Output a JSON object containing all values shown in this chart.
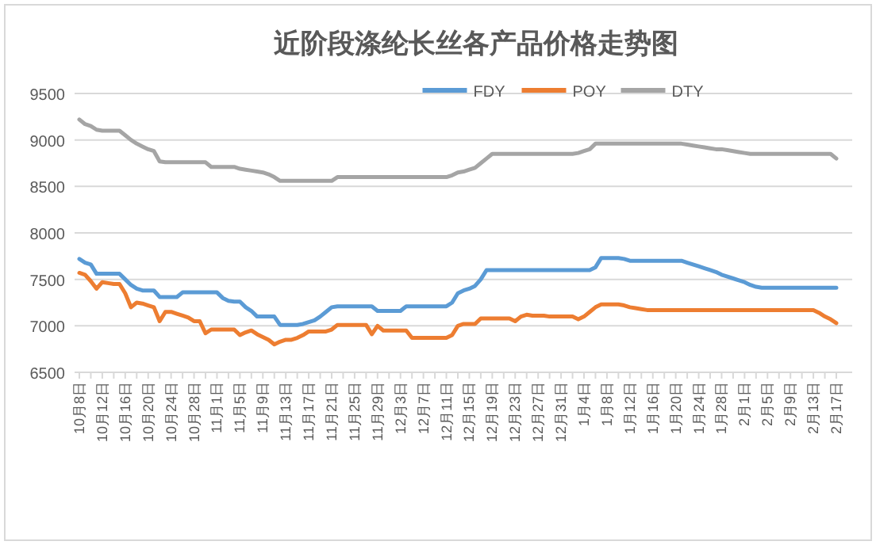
{
  "chart_data": {
    "type": "line",
    "title": "近阶段涤纶长丝各产品价格走势图",
    "categories": [
      "10月8日",
      null,
      null,
      null,
      "10月12日",
      null,
      null,
      null,
      "10月16日",
      null,
      null,
      null,
      "10月20日",
      null,
      null,
      null,
      "10月24日",
      null,
      null,
      null,
      "10月28日",
      null,
      null,
      null,
      "11月1日",
      null,
      null,
      null,
      "11月5日",
      null,
      null,
      null,
      "11月9日",
      null,
      null,
      null,
      "11月13日",
      null,
      null,
      null,
      "11月17日",
      null,
      null,
      null,
      "11月21日",
      null,
      null,
      null,
      "11月25日",
      null,
      null,
      null,
      "11月29日",
      null,
      null,
      null,
      "12月3日",
      null,
      null,
      null,
      "12月7日",
      null,
      null,
      null,
      "12月11日",
      null,
      null,
      null,
      "12月15日",
      null,
      null,
      null,
      "12月19日",
      null,
      null,
      null,
      "12月23日",
      null,
      null,
      null,
      "12月27日",
      null,
      null,
      null,
      "12月31日",
      null,
      null,
      null,
      "1月4日",
      null,
      null,
      null,
      "1月8日",
      null,
      null,
      null,
      "1月12日",
      null,
      null,
      null,
      "1月16日",
      null,
      null,
      null,
      "1月20日",
      null,
      null,
      null,
      "1月24日",
      null,
      null,
      null,
      "1月28日",
      null,
      null,
      null,
      "2月1日",
      null,
      null,
      null,
      "2月5日",
      null,
      null,
      null,
      "2月9日",
      null,
      null,
      null,
      "2月13日",
      null,
      null,
      null,
      "2月17日"
    ],
    "series": [
      {
        "name": "FDY",
        "color": "#5b9bd5",
        "values": [
          7720,
          7680,
          7660,
          7560,
          7560,
          7560,
          7560,
          7560,
          7500,
          7440,
          7400,
          7380,
          7380,
          7380,
          7310,
          7310,
          7310,
          7310,
          7360,
          7360,
          7360,
          7360,
          7360,
          7360,
          7360,
          7300,
          7270,
          7260,
          7260,
          7200,
          7160,
          7100,
          7100,
          7100,
          7100,
          7010,
          7010,
          7010,
          7010,
          7020,
          7040,
          7060,
          7100,
          7150,
          7200,
          7210,
          7210,
          7210,
          7210,
          7210,
          7210,
          7210,
          7160,
          7160,
          7160,
          7160,
          7160,
          7210,
          7210,
          7210,
          7210,
          7210,
          7210,
          7210,
          7210,
          7250,
          7350,
          7380,
          7400,
          7430,
          7500,
          7600,
          7600,
          7600,
          7600,
          7600,
          7600,
          7600,
          7600,
          7600,
          7600,
          7600,
          7600,
          7600,
          7600,
          7600,
          7600,
          7600,
          7600,
          7600,
          7630,
          7730,
          7730,
          7730,
          7730,
          7720,
          7700,
          7700,
          7700,
          7700,
          7700,
          7700,
          7700,
          7700,
          7700,
          7700,
          7680,
          7660,
          7640,
          7620,
          7600,
          7580,
          7550,
          7530,
          7510,
          7490,
          7470,
          7440,
          7420,
          7410,
          7410,
          7410,
          7410,
          7410,
          7410,
          7410,
          7410,
          7410,
          7410,
          7410,
          7410,
          7410,
          7410
        ]
      },
      {
        "name": "POY",
        "color": "#ed7d31",
        "values": [
          7570,
          7550,
          7480,
          7400,
          7470,
          7460,
          7450,
          7450,
          7350,
          7200,
          7250,
          7240,
          7220,
          7200,
          7050,
          7150,
          7150,
          7130,
          7110,
          7090,
          7050,
          7050,
          6920,
          6960,
          6960,
          6960,
          6960,
          6960,
          6900,
          6930,
          6950,
          6910,
          6880,
          6850,
          6800,
          6830,
          6850,
          6850,
          6870,
          6900,
          6940,
          6940,
          6940,
          6940,
          6960,
          7010,
          7010,
          7010,
          7010,
          7010,
          7010,
          6910,
          7000,
          6950,
          6950,
          6950,
          6950,
          6950,
          6870,
          6870,
          6870,
          6870,
          6870,
          6870,
          6870,
          6900,
          7000,
          7020,
          7020,
          7020,
          7080,
          7080,
          7080,
          7080,
          7080,
          7080,
          7050,
          7100,
          7120,
          7110,
          7110,
          7110,
          7100,
          7100,
          7100,
          7100,
          7100,
          7070,
          7100,
          7150,
          7200,
          7230,
          7230,
          7230,
          7230,
          7220,
          7200,
          7190,
          7180,
          7170,
          7170,
          7170,
          7170,
          7170,
          7170,
          7170,
          7170,
          7170,
          7170,
          7170,
          7170,
          7170,
          7170,
          7170,
          7170,
          7170,
          7170,
          7170,
          7170,
          7170,
          7170,
          7170,
          7170,
          7170,
          7170,
          7170,
          7170,
          7170,
          7170,
          7140,
          7100,
          7070,
          7030
        ]
      },
      {
        "name": "DTY",
        "color": "#a5a5a5",
        "values": [
          9220,
          9170,
          9150,
          9110,
          9100,
          9100,
          9100,
          9100,
          9050,
          9000,
          8960,
          8930,
          8900,
          8880,
          8770,
          8760,
          8760,
          8760,
          8760,
          8760,
          8760,
          8760,
          8760,
          8710,
          8710,
          8710,
          8710,
          8710,
          8690,
          8680,
          8670,
          8660,
          8650,
          8630,
          8600,
          8560,
          8560,
          8560,
          8560,
          8560,
          8560,
          8560,
          8560,
          8560,
          8560,
          8600,
          8600,
          8600,
          8600,
          8600,
          8600,
          8600,
          8600,
          8600,
          8600,
          8600,
          8600,
          8600,
          8600,
          8600,
          8600,
          8600,
          8600,
          8600,
          8600,
          8620,
          8650,
          8660,
          8680,
          8700,
          8750,
          8800,
          8850,
          8850,
          8850,
          8850,
          8850,
          8850,
          8850,
          8850,
          8850,
          8850,
          8850,
          8850,
          8850,
          8850,
          8850,
          8860,
          8880,
          8900,
          8960,
          8960,
          8960,
          8960,
          8960,
          8960,
          8960,
          8960,
          8960,
          8960,
          8960,
          8960,
          8960,
          8960,
          8960,
          8960,
          8950,
          8940,
          8930,
          8920,
          8910,
          8900,
          8900,
          8890,
          8880,
          8870,
          8860,
          8850,
          8850,
          8850,
          8850,
          8850,
          8850,
          8850,
          8850,
          8850,
          8850,
          8850,
          8850,
          8850,
          8850,
          8850,
          8800
        ]
      }
    ],
    "ylim": [
      6500,
      9500
    ],
    "yticks": [
      6500,
      7000,
      7500,
      8000,
      8500,
      9000,
      9500
    ],
    "grid": "y",
    "legend": "top"
  }
}
